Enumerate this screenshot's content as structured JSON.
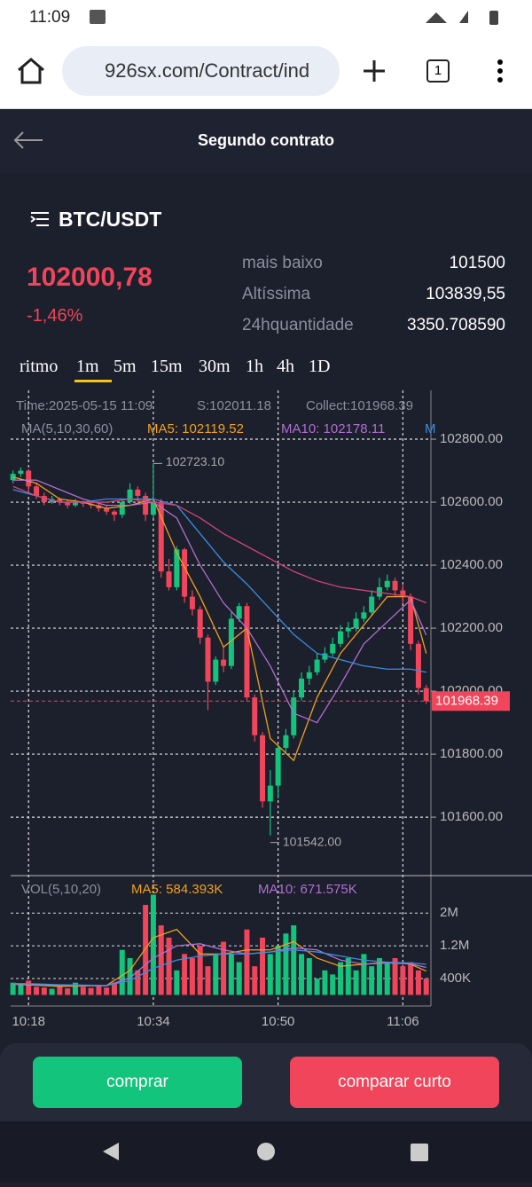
{
  "status_bar": {
    "time": "11:09"
  },
  "browser": {
    "url": "926sx.com/Contract/ind",
    "tabs": "1"
  },
  "header": {
    "title": "Segundo contrato"
  },
  "ticker": {
    "pair": "BTC/USDT",
    "price": "102000,78",
    "change": "-1,46%",
    "stats": [
      {
        "label": "mais baixo",
        "value": "101500"
      },
      {
        "label": "Altíssima",
        "value": "103839,55"
      },
      {
        "label": "24hquantidade",
        "value": "3350.708590"
      }
    ]
  },
  "periods": [
    "ritmo",
    "1m",
    "5m",
    "15m",
    "30m",
    "1h",
    "4h",
    "1D"
  ],
  "chart_data": {
    "type": "candlestick",
    "info": [
      "Time:2025-05-15 11:09",
      "S:102011.18",
      "Collect:101968.39"
    ],
    "ma_title": "MA(5,10,30,60)",
    "ma_legend": [
      {
        "text": "MA5: 102119.52",
        "color": "#f0a020"
      },
      {
        "text": "MA10: 102178.11",
        "color": "#b070d0"
      },
      {
        "text": "M",
        "color": "#3b8de0"
      }
    ],
    "x": [
      16,
      17,
      18,
      19,
      20,
      21,
      22,
      23,
      24,
      25,
      26,
      27,
      28,
      29,
      30,
      31,
      32,
      33,
      34,
      35,
      36,
      37,
      38,
      39,
      40,
      41,
      42,
      43,
      44,
      45,
      46,
      47,
      48,
      49,
      50,
      51,
      52,
      53,
      54,
      55,
      56,
      57,
      58,
      59,
      60,
      61,
      62,
      63,
      64,
      65,
      66,
      67,
      68,
      69
    ],
    "xlim": [
      15.7,
      69.6
    ],
    "xticks": [
      {
        "value": 18,
        "label": "10:18"
      },
      {
        "value": 34,
        "label": "10:34"
      },
      {
        "value": 50,
        "label": "10:50"
      },
      {
        "value": 66,
        "label": "11:06"
      }
    ],
    "open": [
      102670,
      102690,
      102700,
      102650,
      102620,
      102600,
      102610,
      102600,
      102590,
      102600,
      102595,
      102590,
      102580,
      102570,
      102560,
      102600,
      102640,
      102620,
      102560,
      102600,
      102380,
      102330,
      102450,
      102300,
      102260,
      102170,
      102030,
      102100,
      102080,
      102230,
      102270,
      101980,
      101860,
      101650,
      101700,
      101820,
      101860,
      101980,
      102040,
      102060,
      102100,
      102120,
      102150,
      102190,
      102200,
      102230,
      102250,
      102300,
      102330,
      102350,
      102320,
      102300,
      102150,
      102010
    ],
    "high": [
      102700,
      102710,
      102705,
      102660,
      102630,
      102620,
      102615,
      102605,
      102610,
      102605,
      102600,
      102595,
      102590,
      102575,
      102610,
      102660,
      102650,
      102630,
      102723.1,
      102610,
      102420,
      102460,
      102455,
      102320,
      102270,
      102180,
      102110,
      102140,
      102250,
      102280,
      102280,
      101990,
      101870,
      101750,
      101830,
      101880,
      102000,
      102060,
      102080,
      102120,
      102140,
      102170,
      102210,
      102220,
      102250,
      102270,
      102320,
      102360,
      102370,
      102360,
      102340,
      102310,
      102160,
      102020
    ],
    "low": [
      102660,
      102680,
      102630,
      102610,
      102590,
      102595,
      102590,
      102580,
      102585,
      102585,
      102580,
      102570,
      102560,
      102540,
      102550,
      102595,
      102600,
      102540,
      102550,
      102360,
      102320,
      102320,
      102280,
      102240,
      102150,
      101940,
      102020,
      102060,
      102070,
      102220,
      101970,
      101840,
      101630,
      101542,
      101660,
      101800,
      101850,
      101970,
      102020,
      102050,
      102090,
      102110,
      102140,
      102170,
      102190,
      102220,
      102240,
      102290,
      102320,
      102300,
      102280,
      102130,
      101990,
      101960
    ],
    "close": [
      102690,
      102700,
      102650,
      102620,
      102600,
      102610,
      102600,
      102590,
      102600,
      102595,
      102590,
      102580,
      102570,
      102560,
      102600,
      102640,
      102620,
      102560,
      102600,
      102380,
      102330,
      102450,
      102300,
      102260,
      102170,
      102030,
      102100,
      102080,
      102230,
      102270,
      101980,
      101860,
      101650,
      101700,
      101820,
      101860,
      101980,
      102040,
      102060,
      102100,
      102120,
      102150,
      102190,
      102200,
      102230,
      102250,
      102300,
      102330,
      102350,
      102320,
      102300,
      102150,
      102010,
      101968.39
    ],
    "up_color": "#13c47c",
    "down_color": "#f0455a",
    "ylim": [
      101420,
      102955
    ],
    "yticks": [
      {
        "value": 101600,
        "label": "101600.00"
      },
      {
        "value": 101800,
        "label": "101800.00"
      },
      {
        "value": 102000,
        "label": "102000.00"
      },
      {
        "value": 102200,
        "label": "102200.00"
      },
      {
        "value": 102400,
        "label": "102400.00"
      },
      {
        "value": 102600,
        "label": "102600.00"
      },
      {
        "value": 102800,
        "label": "102800.00"
      }
    ],
    "high_label": {
      "value": 102723.1,
      "label": "102723.10"
    },
    "low_label": {
      "value": 101542,
      "label": "101542.00"
    },
    "last_price": 101968.39,
    "ma_x": [
      16,
      19,
      22,
      25,
      28,
      31,
      34,
      37,
      40,
      43,
      46,
      49,
      52,
      55,
      58,
      61,
      64,
      67,
      69
    ],
    "ma_series": [
      {
        "color": "#f0a020",
        "values": [
          102680,
          102660,
          102610,
          102600,
          102580,
          102590,
          102610,
          102440,
          102300,
          102140,
          102200,
          101850,
          101780,
          101980,
          102120,
          102210,
          102300,
          102300,
          102119.52
        ]
      },
      {
        "color": "#b070d0",
        "values": [
          102670,
          102670,
          102640,
          102610,
          102590,
          102590,
          102600,
          102550,
          102400,
          102280,
          102200,
          102080,
          101930,
          101900,
          102020,
          102150,
          102220,
          102290,
          102178.11
        ]
      },
      {
        "color": "#3b8de0",
        "values": [
          102640,
          102620,
          102600,
          102600,
          102610,
          102610,
          102610,
          102590,
          102500,
          102410,
          102340,
          102260,
          102180,
          102120,
          102100,
          102080,
          102070,
          102070,
          102060
        ]
      },
      {
        "color": "#d0457a",
        "values": [
          102650,
          102620,
          102600,
          102600,
          102600,
          102610,
          102600,
          102590,
          102550,
          102500,
          102460,
          102420,
          102380,
          102350,
          102330,
          102320,
          102310,
          102300,
          102280
        ]
      }
    ],
    "volume": [
      300000,
      250000,
      350000,
      200000,
      180000,
      150000,
      220000,
      160000,
      300000,
      200000,
      170000,
      250000,
      180000,
      300000,
      1100000,
      900000,
      600000,
      2200000,
      2450000,
      1700000,
      1400000,
      600000,
      1000000,
      900000,
      1200000,
      700000,
      1000000,
      1300000,
      1000000,
      800000,
      1600000,
      700000,
      1400000,
      1000000,
      1200000,
      1500000,
      1700000,
      1000000,
      900000,
      400000,
      600000,
      500000,
      800000,
      900000,
      600000,
      1000000,
      700000,
      900000,
      800000,
      900000,
      700000,
      800000,
      600000,
      400000
    ],
    "vol_title": "VOL(5,10,20)",
    "vol_legend": [
      {
        "text": "MA5: 584.393K",
        "color": "#f0a020"
      },
      {
        "text": "MA10: 671.575K",
        "color": "#b070d0"
      }
    ],
    "vol_ylim": [
      0,
      2850000
    ],
    "vol_yticks": [
      {
        "value": 400000,
        "label": "400K"
      },
      {
        "value": 1200000,
        "label": "1.2M"
      },
      {
        "value": 2000000,
        "label": "2M"
      }
    ],
    "vol_ma_series": [
      {
        "color": "#f0a020",
        "values": [
          260000,
          240000,
          210000,
          220000,
          230000,
          600000,
          1400000,
          1600000,
          1000000,
          1000000,
          1100000,
          1100000,
          1300000,
          900000,
          700000,
          750000,
          800000,
          750000,
          584393
        ]
      },
      {
        "color": "#b070d0",
        "values": [
          270000,
          260000,
          240000,
          230000,
          220000,
          420000,
          900000,
          1200000,
          1250000,
          1100000,
          1000000,
          1050000,
          1150000,
          1100000,
          850000,
          750000,
          780000,
          760000,
          671575
        ]
      },
      {
        "color": "#3b8de0",
        "values": [
          280000,
          270000,
          250000,
          240000,
          230000,
          350000,
          650000,
          850000,
          950000,
          1000000,
          1000000,
          1050000,
          1100000,
          1050000,
          950000,
          850000,
          800000,
          780000,
          750000
        ]
      }
    ]
  },
  "buttons": {
    "buy": "comprar",
    "sell": "comparar curto"
  }
}
